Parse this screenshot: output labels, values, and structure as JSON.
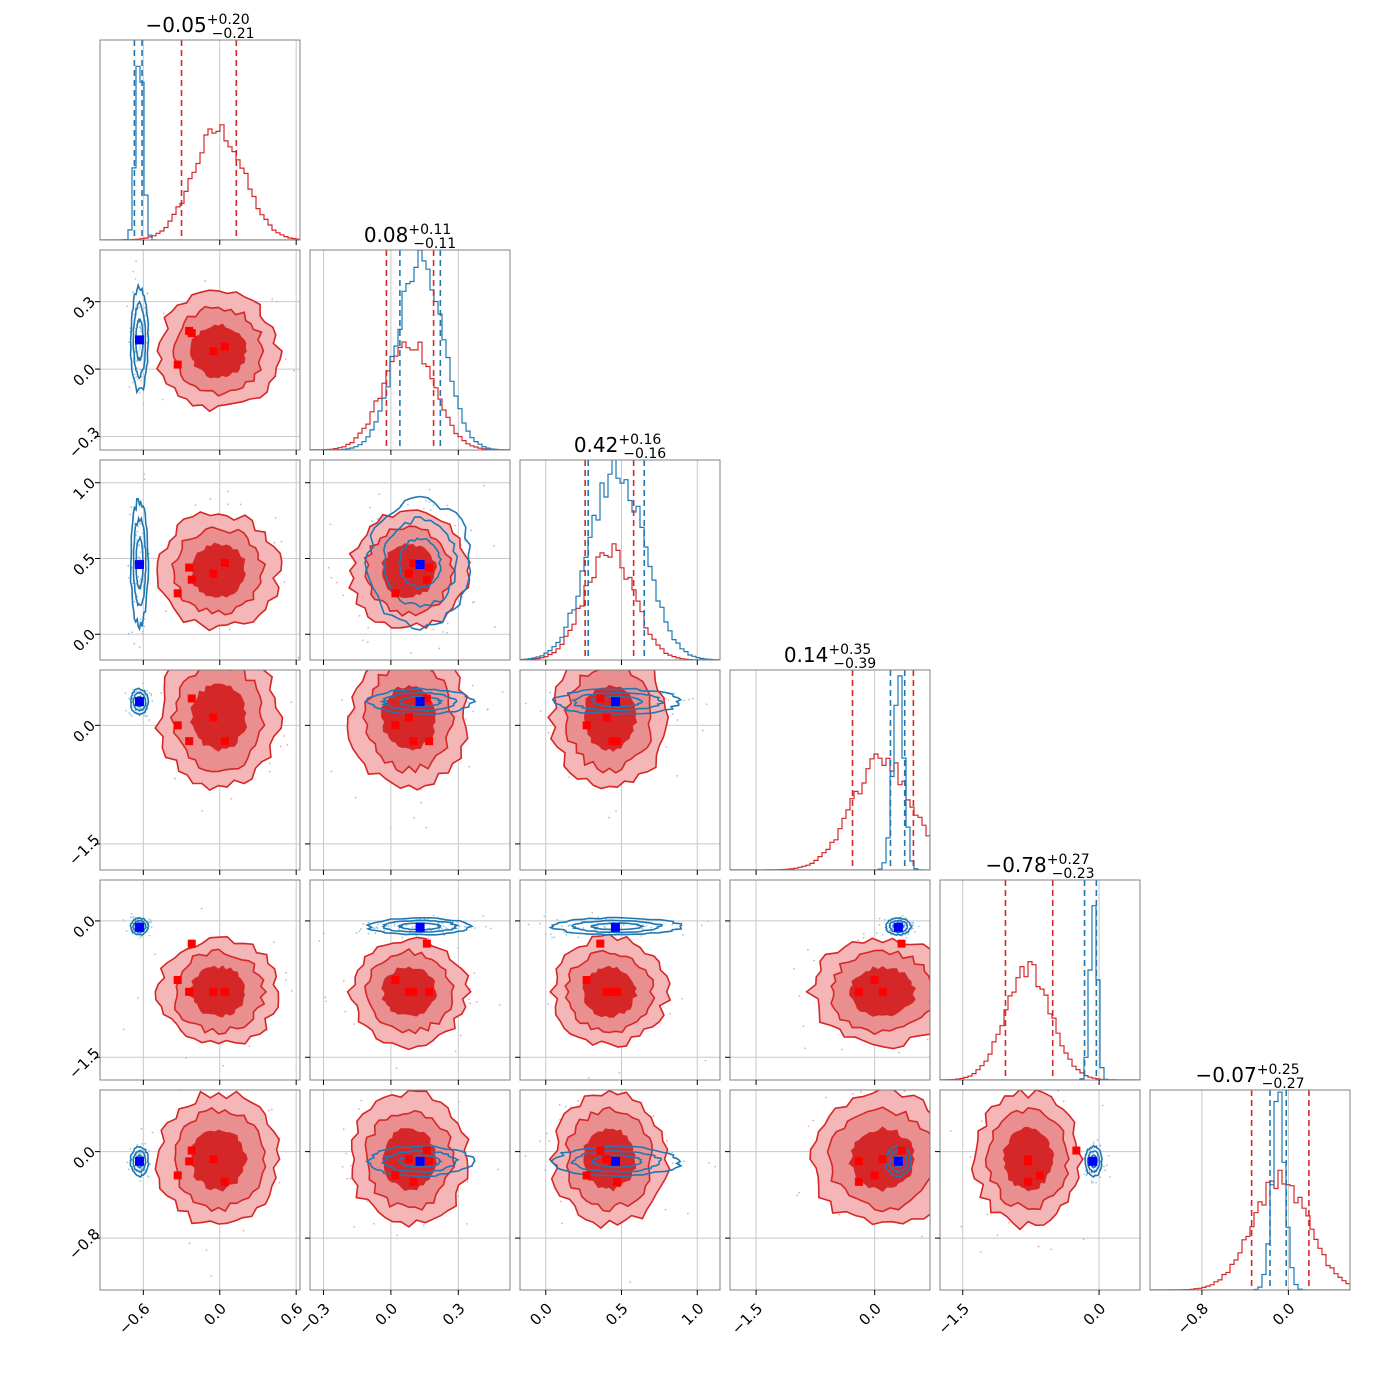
{
  "chart_data": {
    "type": "corner",
    "colors": {
      "red": "#d62728",
      "blue": "#1f77b4",
      "red_fill_light": "#f4b6b6",
      "red_fill_mid": "#ea8f90",
      "red_fill_dark": "#d62728",
      "grid": "#c8c8c8",
      "frame": "#808080"
    },
    "n_params": 6,
    "titles": [
      {
        "center": "−0.05",
        "plus": "+0.20",
        "minus": "−0.21"
      },
      {
        "center": "0.08",
        "plus": "+0.11",
        "minus": "−0.11"
      },
      {
        "center": "0.42",
        "plus": "+0.16",
        "minus": "−0.16"
      },
      {
        "center": "0.14",
        "plus": "+0.35",
        "minus": "−0.39"
      },
      {
        "center": "−0.78",
        "plus": "+0.27",
        "minus": "−0.23"
      },
      {
        "center": "−0.07",
        "plus": "+0.25",
        "minus": "−0.27"
      }
    ],
    "ranges": [
      [
        -0.94,
        0.63
      ],
      [
        -0.36,
        0.53
      ],
      [
        -0.17,
        1.15
      ],
      [
        -1.83,
        0.7
      ],
      [
        -1.75,
        0.45
      ],
      [
        -1.28,
        0.57
      ]
    ],
    "ticks": [
      {
        "values": [
          -0.6,
          0.0,
          0.6
        ],
        "labels": [
          "−0.6",
          "0.0",
          "0.6"
        ]
      },
      {
        "values": [
          -0.3,
          0.0,
          0.3
        ],
        "labels": [
          "−0.3",
          "0.0",
          "0.3"
        ]
      },
      {
        "values": [
          0.0,
          0.5,
          1.0
        ],
        "labels": [
          "0.0",
          "0.5",
          "1.0"
        ]
      },
      {
        "values": [
          -1.5,
          0.0
        ],
        "labels": [
          "−1.5",
          "0.0"
        ]
      },
      {
        "values": [
          -1.5,
          0.0
        ],
        "labels": [
          "−1.5",
          "0.0"
        ]
      },
      {
        "values": [
          -0.8,
          0.0
        ],
        "labels": [
          "−0.8",
          "0.0"
        ]
      }
    ],
    "red_posterior": {
      "mean": [
        -0.01,
        0.08,
        0.42,
        0.1,
        -0.78,
        -0.07
      ],
      "sd": [
        0.2,
        0.11,
        0.16,
        0.38,
        0.25,
        0.26
      ]
    },
    "blue_posterior": {
      "mean": [
        -0.63,
        0.13,
        0.47,
        0.3,
        -0.06,
        -0.09
      ],
      "sd": [
        0.03,
        0.1,
        0.18,
        0.07,
        0.04,
        0.06
      ]
    },
    "red_quantile_lines": [
      [
        -0.3,
        0.13
      ],
      [
        -0.02,
        0.19
      ],
      [
        0.26,
        0.58
      ],
      [
        -0.28,
        0.49
      ],
      [
        -1.03,
        -0.51
      ],
      [
        -0.34,
        0.19
      ]
    ],
    "blue_quantile_lines": [
      [
        -0.67,
        -0.61
      ],
      [
        0.04,
        0.22
      ],
      [
        0.28,
        0.65
      ],
      [
        0.2,
        0.38
      ],
      [
        -0.16,
        -0.03
      ],
      [
        -0.17,
        -0.02
      ]
    ],
    "blue_markers": [
      -0.63,
      0.13,
      0.46,
      0.3,
      -0.07,
      -0.09
    ],
    "red_markers": [
      [
        -0.05,
        0.08,
        0.4,
        0.1,
        -0.78,
        -0.07
      ],
      [
        -0.22,
        0.16,
        0.36,
        0.34,
        -0.25,
        0.01
      ],
      [
        0.04,
        0.1,
        0.47,
        -0.2,
        -0.78,
        -0.28
      ],
      [
        -0.33,
        0.02,
        0.27,
        0.0,
        -0.65,
        -0.22
      ],
      [
        -0.24,
        0.17,
        0.44,
        -0.2,
        -0.78,
        -0.09
      ]
    ]
  }
}
